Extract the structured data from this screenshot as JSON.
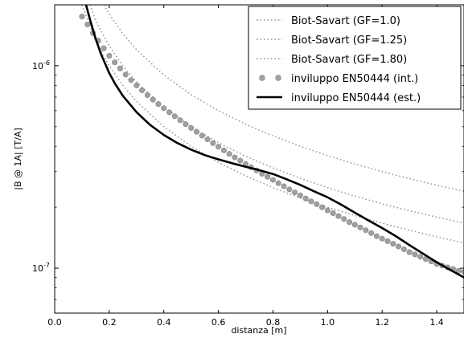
{
  "chart_data": {
    "type": "line",
    "title": "",
    "xlabel": "distanza [m]",
    "ylabel": "|B @ 1A| [T/A]",
    "xlim": [
      0.0,
      1.5
    ],
    "ylim": [
      6e-08,
      2e-06
    ],
    "yscale": "log",
    "grid": false,
    "legend_position": "top-right",
    "x_ticks": [
      0.0,
      0.2,
      0.4,
      0.6,
      0.8,
      1.0,
      1.2,
      1.4
    ],
    "x_tick_labels": [
      "0.0",
      "0.2",
      "0.4",
      "0.6",
      "0.8",
      "1.0",
      "1.2",
      "1.4"
    ],
    "y_ticks": [
      1e-06,
      1e-07
    ],
    "y_tick_labels": [
      "10^-6",
      "10^-7"
    ],
    "y_tick_labels_parts": [
      {
        "base": "10",
        "exp": "-6"
      },
      {
        "base": "10",
        "exp": "-7"
      }
    ],
    "series": [
      {
        "name": "Biot-Savart (GF=1.0)",
        "style": "dotted",
        "color": "#8c8c8c",
        "x": [
          0.1,
          0.15,
          0.2,
          0.25,
          0.3,
          0.4,
          0.5,
          0.6,
          0.7,
          0.8,
          0.9,
          1.0,
          1.1,
          1.2,
          1.3,
          1.4,
          1.5
        ],
        "y": [
          2e-06,
          1.33e-06,
          1e-06,
          8e-07,
          6.67e-07,
          5e-07,
          4e-07,
          3.33e-07,
          2.86e-07,
          2.5e-07,
          2.22e-07,
          2e-07,
          1.82e-07,
          1.67e-07,
          1.54e-07,
          1.43e-07,
          1.33e-07
        ]
      },
      {
        "name": "Biot-Savart (GF=1.25)",
        "style": "dotted",
        "color": "#8c8c8c",
        "x": [
          0.13,
          0.15,
          0.2,
          0.25,
          0.3,
          0.4,
          0.5,
          0.6,
          0.7,
          0.8,
          0.9,
          1.0,
          1.1,
          1.2,
          1.3,
          1.4,
          1.5
        ],
        "y": [
          2e-06,
          1.67e-06,
          1.25e-06,
          1e-06,
          8.33e-07,
          6.25e-07,
          5e-07,
          4.17e-07,
          3.57e-07,
          3.13e-07,
          2.78e-07,
          2.5e-07,
          2.27e-07,
          2.08e-07,
          1.92e-07,
          1.79e-07,
          1.67e-07
        ]
      },
      {
        "name": "Biot-Savart (GF=1.80)",
        "style": "dotted",
        "color": "#8c8c8c",
        "x": [
          0.18,
          0.2,
          0.25,
          0.3,
          0.4,
          0.5,
          0.6,
          0.7,
          0.8,
          0.9,
          1.0,
          1.1,
          1.2,
          1.3,
          1.4,
          1.5
        ],
        "y": [
          2e-06,
          1.8e-06,
          1.44e-06,
          1.2e-06,
          9e-07,
          7.2e-07,
          6e-07,
          5.14e-07,
          4.5e-07,
          4e-07,
          3.6e-07,
          3.27e-07,
          3e-07,
          2.77e-07,
          2.57e-07,
          2.4e-07
        ]
      },
      {
        "name": "inviluppo EN50444 (int.)",
        "style": "circles",
        "color": "#a0a0a0",
        "x": [
          0.1,
          0.12,
          0.14,
          0.16,
          0.18,
          0.2,
          0.22,
          0.24,
          0.26,
          0.28,
          0.3,
          0.32,
          0.34,
          0.36,
          0.38,
          0.4,
          0.42,
          0.44,
          0.46,
          0.48,
          0.5,
          0.52,
          0.54,
          0.56,
          0.58,
          0.6,
          0.62,
          0.64,
          0.66,
          0.68,
          0.7,
          0.72,
          0.74,
          0.76,
          0.78,
          0.8,
          0.82,
          0.84,
          0.86,
          0.88,
          0.9,
          0.92,
          0.94,
          0.96,
          0.98,
          1.0,
          1.02,
          1.04,
          1.06,
          1.08,
          1.1,
          1.12,
          1.14,
          1.16,
          1.18,
          1.2,
          1.22,
          1.24,
          1.26,
          1.28,
          1.3,
          1.32,
          1.34,
          1.36,
          1.38,
          1.4,
          1.42,
          1.44,
          1.46,
          1.48,
          1.5
        ],
        "y": [
          1.75e-06,
          1.6e-06,
          1.45e-06,
          1.33e-06,
          1.22e-06,
          1.12e-06,
          1.04e-06,
          9.7e-07,
          9.05e-07,
          8.5e-07,
          8e-07,
          7.56e-07,
          7.16e-07,
          6.8e-07,
          6.47e-07,
          6.17e-07,
          5.89e-07,
          5.63e-07,
          5.38e-07,
          5.15e-07,
          4.93e-07,
          4.72e-07,
          4.52e-07,
          4.33e-07,
          4.15e-07,
          3.98e-07,
          3.82e-07,
          3.67e-07,
          3.53e-07,
          3.4e-07,
          3.27e-07,
          3.15e-07,
          3.04e-07,
          2.93e-07,
          2.83e-07,
          2.73e-07,
          2.63e-07,
          2.54e-07,
          2.45e-07,
          2.37e-07,
          2.29e-07,
          2.21e-07,
          2.14e-07,
          2.07e-07,
          2e-07,
          1.93e-07,
          1.87e-07,
          1.81e-07,
          1.75e-07,
          1.69e-07,
          1.64e-07,
          1.59e-07,
          1.54e-07,
          1.49e-07,
          1.44e-07,
          1.4e-07,
          1.36e-07,
          1.32e-07,
          1.28e-07,
          1.24e-07,
          1.2e-07,
          1.17e-07,
          1.14e-07,
          1.11e-07,
          1.08e-07,
          1.05e-07,
          1.03e-07,
          1.01e-07,
          9.9e-08,
          9.7e-08,
          9.6e-08
        ]
      },
      {
        "name": "inviluppo EN50444 (est.)",
        "style": "solid",
        "color": "#000000",
        "x": [
          0.115,
          0.13,
          0.15,
          0.17,
          0.2,
          0.22,
          0.25,
          0.3,
          0.35,
          0.4,
          0.45,
          0.5,
          0.55,
          0.6,
          0.65,
          0.7,
          0.75,
          0.8,
          0.85,
          0.9,
          0.95,
          1.0,
          1.05,
          1.1,
          1.15,
          1.2,
          1.25,
          1.3,
          1.35,
          1.4,
          1.45,
          1.5
        ],
        "y": [
          2e-06,
          1.68e-06,
          1.36e-06,
          1.14e-06,
          9.2e-07,
          8.2e-07,
          7.1e-07,
          5.9e-07,
          5.1e-07,
          4.55e-07,
          4.15e-07,
          3.85e-07,
          3.62e-07,
          3.45e-07,
          3.3e-07,
          3.17e-07,
          3.05e-07,
          2.92e-07,
          2.75e-07,
          2.58e-07,
          2.4e-07,
          2.24e-07,
          2.06e-07,
          1.88e-07,
          1.72e-07,
          1.58e-07,
          1.44e-07,
          1.3e-07,
          1.18e-07,
          1.07e-07,
          9.8e-08,
          9e-08
        ]
      }
    ]
  }
}
